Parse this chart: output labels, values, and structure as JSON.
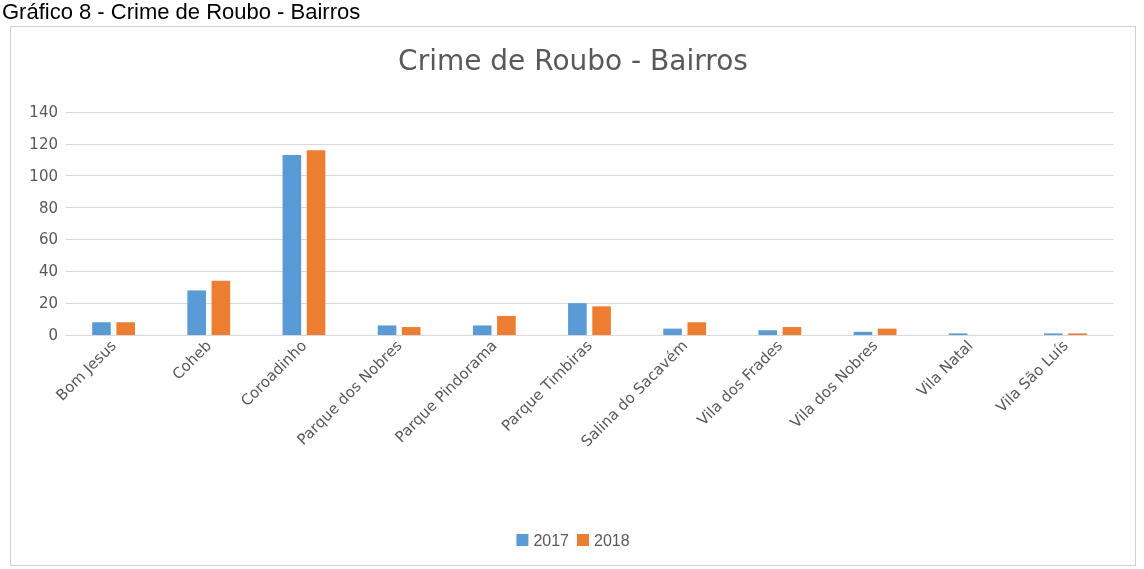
{
  "chart_data": {
    "type": "bar",
    "title": "Crime de Roubo - Bairros",
    "annotations": [
      "Gráfico 8 - Crime de Roubo - Bairros"
    ],
    "categories": [
      "Bom Jesus",
      "Coheb",
      "Coroadinho",
      "Parque dos Nobres",
      "Parque Pindorama",
      "Parque Timbiras",
      "Salina do Sacavém",
      "Vila dos Frades",
      "Vila dos Nobres",
      "Vila Natal",
      "Vila São Luís"
    ],
    "series": [
      {
        "name": "2017",
        "color": "#5b9bd5",
        "values": [
          8,
          28,
          113,
          6,
          6,
          20,
          4,
          3,
          2,
          1,
          1
        ]
      },
      {
        "name": "2018",
        "color": "#ed7d31",
        "values": [
          8,
          34,
          116,
          5,
          12,
          18,
          8,
          5,
          4,
          0,
          1
        ]
      }
    ],
    "ylim": [
      0,
      140
    ],
    "yticks": [
      0,
      20,
      40,
      60,
      80,
      100,
      120,
      140
    ],
    "grid": "y",
    "legend": "bottom"
  }
}
